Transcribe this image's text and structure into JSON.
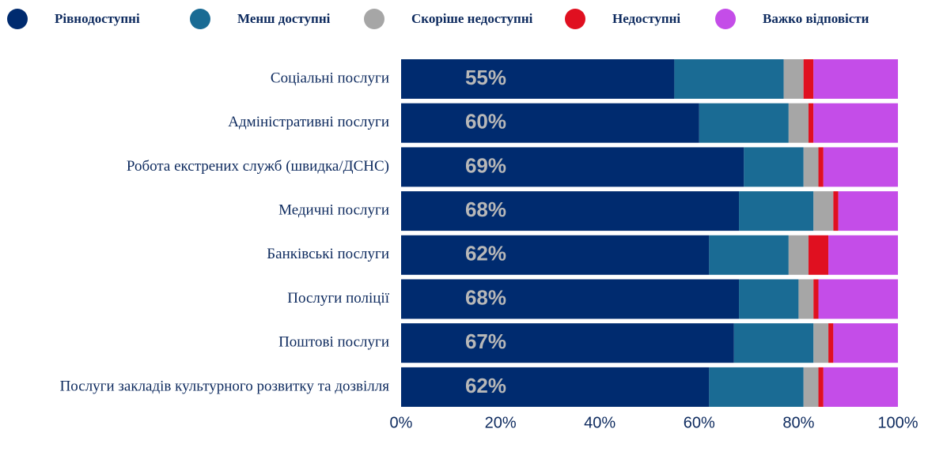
{
  "chart_data": {
    "type": "stacked_bar_horizontal",
    "categories": [
      "Соціальні послуги",
      "Адміністративні послуги",
      "Робота екстрених служб (швидка/ДСНС)",
      "Медичні послуги",
      "Банківські послуги",
      "Послуги поліції",
      "Поштові послуги",
      "Послуги закладів культурного розвитку та дозвілля"
    ],
    "series": [
      {
        "name": "Рівнодоступні",
        "color": "#002b6f",
        "values": [
          55,
          60,
          69,
          68,
          62,
          68,
          67,
          62
        ],
        "value_labels": [
          "55%",
          "60%",
          "69%",
          "68%",
          "62%",
          "68%",
          "67%",
          "62%"
        ]
      },
      {
        "name": "Менш доступні",
        "color": "#1a6b94",
        "values": [
          22,
          18,
          12,
          15,
          16,
          12,
          16,
          19
        ]
      },
      {
        "name": "Скоріше недоступні",
        "color": "#a6a6a6",
        "values": [
          4,
          4,
          3,
          4,
          4,
          3,
          3,
          3
        ]
      },
      {
        "name": "Недоступні",
        "color": "#e01020",
        "values": [
          2,
          1,
          1,
          1,
          4,
          1,
          1,
          1
        ]
      },
      {
        "name": "Важко відповісти",
        "color": "#c44de8",
        "values": [
          17,
          17,
          15,
          12,
          14,
          16,
          13,
          15
        ]
      }
    ],
    "xlim": [
      0,
      100
    ],
    "xticks": [
      {
        "value": 0,
        "label": "0%"
      },
      {
        "value": 20,
        "label": "20%"
      },
      {
        "value": 40,
        "label": "40%"
      },
      {
        "value": 60,
        "label": "60%"
      },
      {
        "value": 80,
        "label": "80%"
      },
      {
        "value": 100,
        "label": "100%"
      }
    ],
    "legend": "top"
  }
}
